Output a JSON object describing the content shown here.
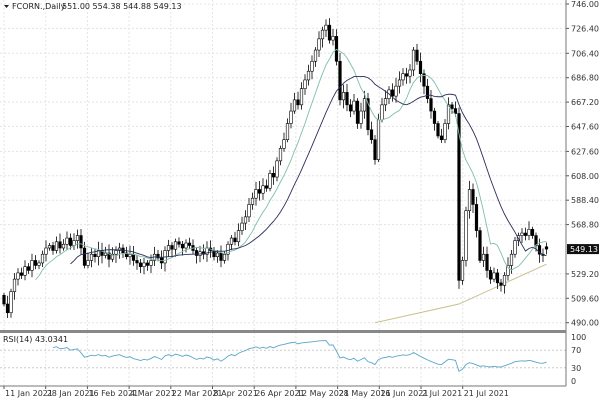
{
  "header": {
    "arrow_icon": "triangle-down-icon",
    "symbol": "FCORN.,Daily",
    "ohlc": "551.00 554.38 544.88 549.13"
  },
  "price_axis": {
    "labels": [
      "746.00",
      "726.40",
      "706.40",
      "686.80",
      "667.20",
      "647.60",
      "627.60",
      "608.00",
      "588.40",
      "568.80",
      "529.20",
      "509.60",
      "490.00"
    ],
    "current_price": "549.13"
  },
  "rsi": {
    "label": "RSI(14) 43.0341",
    "period": 14,
    "levels": [
      "100",
      "70",
      "30",
      "0"
    ],
    "color": "#5aa7c8"
  },
  "date_axis": {
    "labels": [
      "11 Jan 2021",
      "28 Jan 2021",
      "16 Feb 2021",
      "4 Mar 2021",
      "22 Mar 2021",
      "8 Apr 2021",
      "26 Apr 2021",
      "12 May 2021",
      "28 May 2021",
      "16 Jun 2021",
      "2 Jul 2021",
      "21 Jul 2021"
    ]
  },
  "chart_data": {
    "type": "candlestick",
    "ylim": [
      486,
      746
    ],
    "closes": [
      505,
      498,
      515,
      525,
      530,
      528,
      535,
      532,
      540,
      536,
      538,
      545,
      550,
      552,
      548,
      555,
      550,
      553,
      558,
      552,
      556,
      560,
      550,
      536,
      540,
      545,
      543,
      548,
      544,
      546,
      541,
      545,
      548,
      550,
      546,
      543,
      545,
      540,
      538,
      535,
      538,
      536,
      540,
      545,
      542,
      538,
      548,
      552,
      549,
      555,
      553,
      550,
      554,
      552,
      548,
      544,
      547,
      545,
      550,
      548,
      543,
      546,
      540,
      545,
      553,
      558,
      555,
      564,
      570,
      575,
      585,
      590,
      597,
      594,
      600,
      598,
      610,
      607,
      620,
      630,
      637,
      650,
      660,
      669,
      665,
      678,
      685,
      692,
      700,
      709,
      718,
      725,
      729,
      717,
      720,
      700,
      669,
      675,
      665,
      660,
      668,
      650,
      660,
      670,
      645,
      637,
      621,
      653,
      665,
      670,
      677,
      672,
      680,
      685,
      690,
      688,
      693,
      709,
      700,
      690,
      680,
      670,
      660,
      650,
      640,
      637,
      650,
      665,
      662,
      658,
      524,
      540,
      580,
      597,
      585,
      564,
      540,
      545,
      532,
      525,
      530,
      522,
      520,
      528,
      536,
      545,
      556,
      560,
      562,
      560,
      565,
      560,
      552,
      545,
      544,
      549.13
    ],
    "first_open": 512,
    "last_open": 551.0,
    "last_high": 554.38,
    "last_low": 544.88,
    "ma_fast": {
      "period": 10,
      "color": "#7fbfa8"
    },
    "ma_slow": {
      "period": 20,
      "color": "#2b2f5a"
    },
    "ma_long": {
      "color": "#c8c08a",
      "points": [
        [
          106,
          490
        ],
        [
          130,
          505
        ],
        [
          155,
          537
        ]
      ]
    },
    "colors": {
      "bull": "#ffffff",
      "bear": "#000000",
      "grid": "#e4e4e4"
    }
  }
}
